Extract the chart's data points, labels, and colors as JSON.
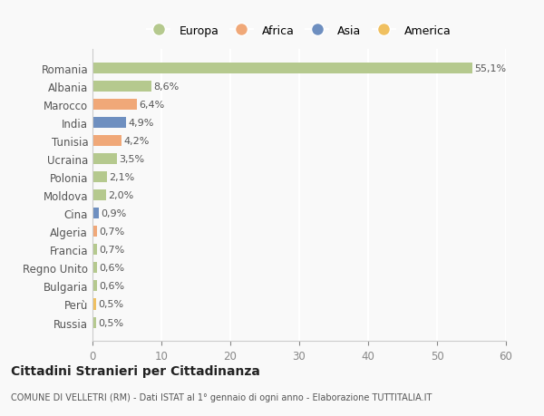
{
  "countries": [
    "Romania",
    "Albania",
    "Marocco",
    "India",
    "Tunisia",
    "Ucraina",
    "Polonia",
    "Moldova",
    "Cina",
    "Algeria",
    "Francia",
    "Regno Unito",
    "Bulgaria",
    "Perù",
    "Russia"
  ],
  "values": [
    55.1,
    8.6,
    6.4,
    4.9,
    4.2,
    3.5,
    2.1,
    2.0,
    0.9,
    0.7,
    0.7,
    0.6,
    0.6,
    0.5,
    0.5
  ],
  "labels": [
    "55,1%",
    "8,6%",
    "6,4%",
    "4,9%",
    "4,2%",
    "3,5%",
    "2,1%",
    "2,0%",
    "0,9%",
    "0,7%",
    "0,7%",
    "0,6%",
    "0,6%",
    "0,5%",
    "0,5%"
  ],
  "colors": [
    "#b5c98e",
    "#b5c98e",
    "#f0a878",
    "#6e8fc0",
    "#f0a878",
    "#b5c98e",
    "#b5c98e",
    "#b5c98e",
    "#6e8fc0",
    "#f0a878",
    "#b5c98e",
    "#b5c98e",
    "#b5c98e",
    "#f0c060",
    "#b5c98e"
  ],
  "legend_labels": [
    "Europa",
    "Africa",
    "Asia",
    "America"
  ],
  "legend_colors": [
    "#b5c98e",
    "#f0a878",
    "#6e8fc0",
    "#f0c060"
  ],
  "xlim": [
    0,
    60
  ],
  "xticks": [
    0,
    10,
    20,
    30,
    40,
    50,
    60
  ],
  "title": "Cittadini Stranieri per Cittadinanza",
  "subtitle": "COMUNE DI VELLETRI (RM) - Dati ISTAT al 1° gennaio di ogni anno - Elaborazione TUTTITALIA.IT",
  "background_color": "#f9f9f9",
  "grid_color": "#ffffff"
}
